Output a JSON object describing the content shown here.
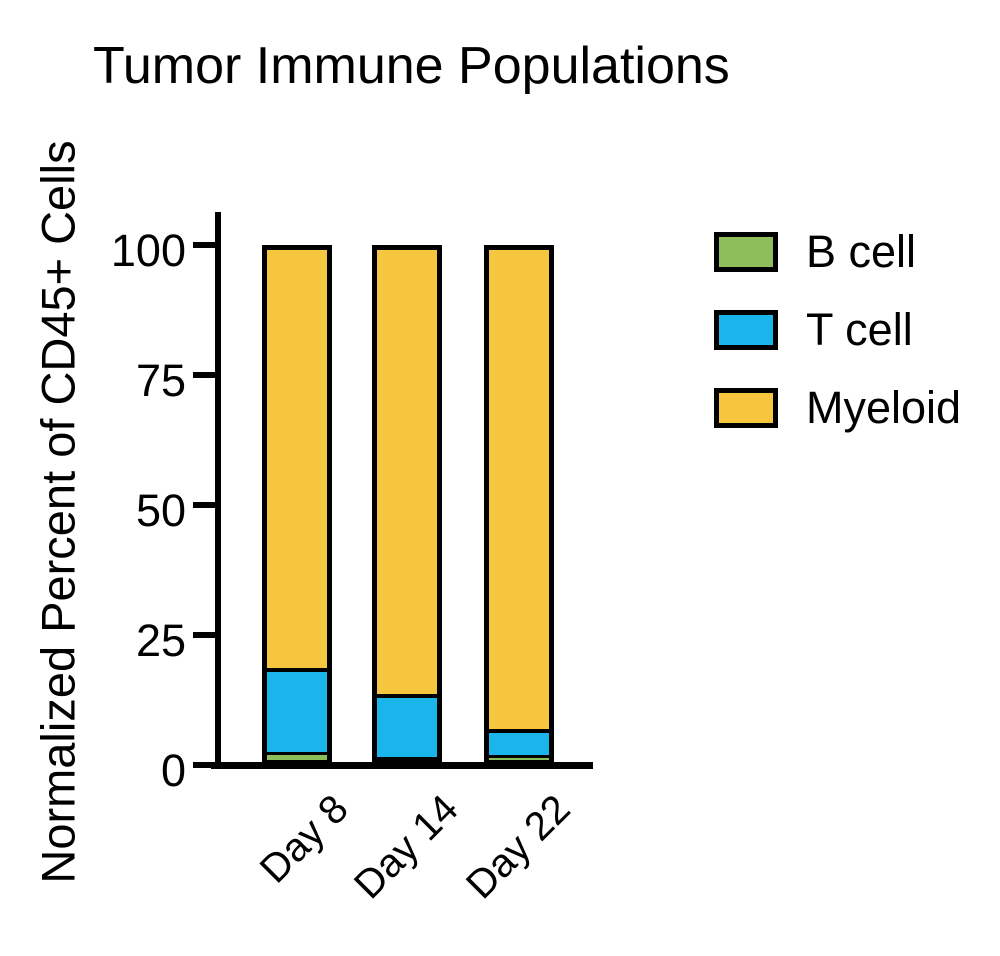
{
  "chart_data": {
    "type": "bar",
    "stacked": true,
    "title": "Tumor Immune Populations",
    "ylabel": "Normalized Percent of CD45+ Cells",
    "xlabel": "",
    "categories": [
      "Day 8",
      "Day 14",
      "Day 22"
    ],
    "series": [
      {
        "name": "B cell",
        "color": "#8CBE5C",
        "values": [
          1.5,
          0.5,
          1
        ]
      },
      {
        "name": "T cell",
        "color": "#1AB5EB",
        "values": [
          16.5,
          12.5,
          5
        ]
      },
      {
        "name": "Myeloid",
        "color": "#F6C73E",
        "values": [
          82,
          87,
          94
        ]
      }
    ],
    "ylim": [
      0,
      100
    ],
    "yticks": [
      0,
      25,
      50,
      75,
      100
    ],
    "grid": false,
    "legend_position": "right",
    "bar_outline_color": "#000000",
    "axis_color": "#000000",
    "background_color": "#FFFFFF"
  }
}
